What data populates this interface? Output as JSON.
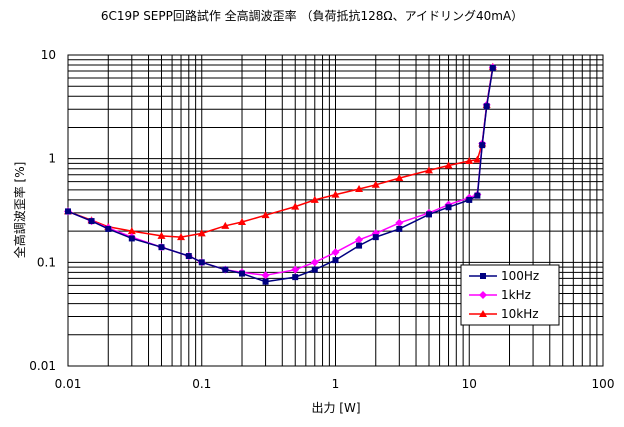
{
  "chart_data": {
    "type": "line",
    "title": "6C19P SEPP回路試作 全高調波歪率 （負荷抵抗128Ω、アイドリング40mA）",
    "xlabel": "出力 [W]",
    "ylabel": "全高調波歪率 [%]",
    "x_scale": "log",
    "y_scale": "log",
    "xlim": [
      0.01,
      100
    ],
    "ylim": [
      0.01,
      10
    ],
    "x_tick_labels": [
      "0.01",
      "0.1",
      "1",
      "10",
      "100"
    ],
    "y_tick_labels": [
      "0.01",
      "0.1",
      "1",
      "10"
    ],
    "grid": true,
    "legend_position": "lower-right",
    "series": [
      {
        "name": "100Hz",
        "color": "#000080",
        "marker": "square",
        "points": [
          [
            0.01,
            0.31
          ],
          [
            0.015,
            0.25
          ],
          [
            0.02,
            0.21
          ],
          [
            0.03,
            0.17
          ],
          [
            0.05,
            0.14
          ],
          [
            0.08,
            0.115
          ],
          [
            0.1,
            0.1
          ],
          [
            0.15,
            0.085
          ],
          [
            0.2,
            0.078
          ],
          [
            0.3,
            0.065
          ],
          [
            0.5,
            0.072
          ],
          [
            0.7,
            0.085
          ],
          [
            1.0,
            0.105
          ],
          [
            1.5,
            0.145
          ],
          [
            2.0,
            0.175
          ],
          [
            3.0,
            0.21
          ],
          [
            5.0,
            0.29
          ],
          [
            7.0,
            0.34
          ],
          [
            10.0,
            0.4
          ],
          [
            11.5,
            0.44
          ],
          [
            12.5,
            1.35
          ],
          [
            13.5,
            3.2
          ],
          [
            15.0,
            7.5
          ]
        ]
      },
      {
        "name": "1kHz",
        "color": "#ff00ff",
        "marker": "diamond",
        "points": [
          [
            0.01,
            0.31
          ],
          [
            0.015,
            0.25
          ],
          [
            0.02,
            0.215
          ],
          [
            0.03,
            0.175
          ],
          [
            0.05,
            0.14
          ],
          [
            0.08,
            0.115
          ],
          [
            0.1,
            0.1
          ],
          [
            0.15,
            0.085
          ],
          [
            0.2,
            0.08
          ],
          [
            0.3,
            0.075
          ],
          [
            0.5,
            0.085
          ],
          [
            0.7,
            0.1
          ],
          [
            1.0,
            0.125
          ],
          [
            1.5,
            0.165
          ],
          [
            2.0,
            0.19
          ],
          [
            3.0,
            0.24
          ],
          [
            5.0,
            0.3
          ],
          [
            7.0,
            0.36
          ],
          [
            10.0,
            0.42
          ],
          [
            11.5,
            0.45
          ],
          [
            12.5,
            1.4
          ],
          [
            13.5,
            3.3
          ],
          [
            15.0,
            7.6
          ]
        ]
      },
      {
        "name": "10kHz",
        "color": "#ff0000",
        "marker": "triangle",
        "points": [
          [
            0.01,
            0.31
          ],
          [
            0.015,
            0.255
          ],
          [
            0.02,
            0.22
          ],
          [
            0.03,
            0.2
          ],
          [
            0.05,
            0.18
          ],
          [
            0.07,
            0.175
          ],
          [
            0.1,
            0.19
          ],
          [
            0.15,
            0.225
          ],
          [
            0.2,
            0.245
          ],
          [
            0.3,
            0.285
          ],
          [
            0.5,
            0.345
          ],
          [
            0.7,
            0.4
          ],
          [
            1.0,
            0.45
          ],
          [
            1.5,
            0.51
          ],
          [
            2.0,
            0.56
          ],
          [
            3.0,
            0.65
          ],
          [
            5.0,
            0.77
          ],
          [
            7.0,
            0.86
          ],
          [
            10.0,
            0.95
          ],
          [
            11.5,
            0.98
          ],
          [
            12.5,
            1.4
          ],
          [
            13.5,
            3.3
          ],
          [
            15.0,
            7.7
          ]
        ]
      }
    ]
  }
}
